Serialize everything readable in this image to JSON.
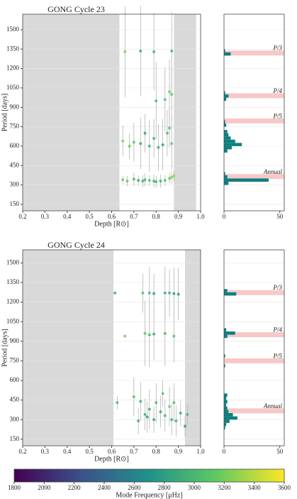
{
  "chart_data": [
    {
      "type": "scatter",
      "title": "GONG Cycle 23",
      "xlabel": "Depth [R⊙]",
      "ylabel": "Period [days]",
      "xlim": [
        0.2,
        1.0
      ],
      "ylim": [
        100,
        1620
      ],
      "xticks": [
        0.2,
        0.3,
        0.4,
        0.5,
        0.6,
        0.7,
        0.8,
        0.9,
        {
          "value": 1.0,
          "label": "1.0"
        }
      ],
      "yticks": [
        150,
        300,
        450,
        600,
        750,
        900,
        1050,
        1200,
        1350,
        1500
      ],
      "grid": true,
      "shaded": [
        [
          0.2,
          0.635
        ],
        [
          0.88,
          0.98
        ]
      ],
      "shade_color": "#d9d9d9",
      "errcolor": "#aaaaaa",
      "x": [
        0.65,
        0.67,
        0.7,
        0.72,
        0.74,
        0.75,
        0.77,
        0.79,
        0.8,
        0.82,
        0.84,
        0.86,
        0.87,
        0.88,
        0.65,
        0.68,
        0.7,
        0.73,
        0.75,
        0.77,
        0.79,
        0.81,
        0.83,
        0.85,
        0.86,
        0.87,
        0.8,
        0.84,
        0.86,
        0.87,
        0.66,
        0.73,
        0.79,
        0.87
      ],
      "y": [
        340,
        330,
        345,
        335,
        330,
        340,
        335,
        330,
        325,
        330,
        335,
        350,
        360,
        370,
        640,
        600,
        630,
        620,
        700,
        600,
        660,
        590,
        610,
        700,
        740,
        620,
        950,
        960,
        1020,
        1000,
        1330,
        1335,
        1330,
        1335
      ],
      "yerr": [
        30,
        40,
        50,
        40,
        45,
        50,
        40,
        50,
        45,
        50,
        40,
        40,
        50,
        40,
        120,
        100,
        150,
        200,
        150,
        200,
        150,
        180,
        200,
        180,
        150,
        200,
        300,
        250,
        250,
        200,
        350,
        350,
        300,
        300
      ],
      "freq": [
        3200,
        3150,
        3000,
        2900,
        2950,
        3000,
        3100,
        2950,
        3000,
        2900,
        3100,
        3200,
        3250,
        3300,
        3250,
        3200,
        3100,
        2900,
        2800,
        2950,
        3000,
        2900,
        2850,
        3000,
        3100,
        3150,
        3000,
        3100,
        3200,
        3150,
        3250,
        2900,
        2950,
        3000
      ]
    },
    {
      "type": "histogram",
      "xlim": [
        0,
        54
      ],
      "ylim": [
        100,
        1620
      ],
      "xticks": [
        0,
        50
      ],
      "yticks": [
        150,
        300,
        450,
        600,
        750,
        900,
        1050,
        1200,
        1350,
        1500
      ],
      "grid": true,
      "color": "#0f7f7f",
      "bins": [
        100,
        125,
        150,
        175,
        200,
        225,
        250,
        275,
        300,
        325,
        350,
        375,
        400,
        425,
        450,
        475,
        500,
        525,
        550,
        575,
        600,
        625,
        650,
        675,
        700,
        725,
        750,
        775,
        800,
        825,
        850,
        875,
        900,
        925,
        950,
        975,
        1000,
        1025,
        1050,
        1075,
        1100,
        1125,
        1150,
        1175,
        1200,
        1225,
        1250,
        1275,
        1300,
        1325,
        1350,
        1375,
        1400,
        1425,
        1450,
        1475,
        1500,
        1525,
        1550,
        1575,
        1600
      ],
      "counts": [
        0,
        0,
        0,
        0,
        0,
        0,
        0,
        0,
        4,
        40,
        3,
        1,
        0,
        0,
        0,
        0,
        0,
        0,
        3,
        7,
        16,
        10,
        6,
        4,
        3,
        0,
        2,
        1,
        0,
        0,
        0,
        0,
        0,
        0,
        2,
        4,
        1,
        0,
        0,
        0,
        0,
        0,
        0,
        0,
        0,
        0,
        0,
        0,
        6,
        1,
        0,
        0,
        0,
        0,
        0,
        0,
        0,
        0,
        0,
        0
      ],
      "band_color": "#f8c8c8",
      "bands": [
        {
          "label": "P/3",
          "value": 1320
        },
        {
          "label": "P/4",
          "value": 990
        },
        {
          "label": "P/5",
          "value": 795
        },
        {
          "label": "Annual",
          "value": 365
        }
      ]
    },
    {
      "type": "scatter",
      "title": "GONG Cycle 24",
      "xlabel": "Depth [R⊙]",
      "ylabel": "Period [days]",
      "xlim": [
        0.2,
        1.0
      ],
      "ylim": [
        100,
        1600
      ],
      "xticks": [
        0.2,
        0.3,
        0.4,
        0.5,
        0.6,
        0.7,
        0.8,
        0.9,
        {
          "value": 1.0,
          "label": "1.0"
        }
      ],
      "yticks": [
        150,
        300,
        450,
        600,
        750,
        900,
        1050,
        1200,
        1350,
        1500
      ],
      "grid": true,
      "shaded": [
        [
          0.2,
          0.608
        ],
        [
          0.93,
          1.0
        ]
      ],
      "shade_color": "#d9d9d9",
      "errcolor": "#aaaaaa",
      "x": [
        0.615,
        0.74,
        0.77,
        0.79,
        0.84,
        0.86,
        0.88,
        0.9,
        0.66,
        0.75,
        0.77,
        0.79,
        0.84,
        0.88,
        0.625,
        0.7,
        0.73,
        0.75,
        0.77,
        0.79,
        0.8,
        0.82,
        0.83,
        0.84,
        0.86,
        0.87,
        0.88,
        0.89,
        0.91,
        0.93,
        0.94,
        0.72,
        0.76
      ],
      "y": [
        1270,
        1270,
        1270,
        1265,
        1270,
        1270,
        1265,
        1260,
        940,
        960,
        950,
        955,
        960,
        940,
        430,
        475,
        440,
        340,
        380,
        300,
        430,
        360,
        500,
        330,
        400,
        300,
        430,
        290,
        350,
        250,
        340,
        290,
        320
      ],
      "yerr": [
        0,
        150,
        200,
        150,
        200,
        180,
        200,
        200,
        0,
        250,
        250,
        200,
        250,
        200,
        50,
        150,
        150,
        120,
        150,
        100,
        150,
        120,
        100,
        120,
        150,
        120,
        150,
        120,
        100,
        80,
        80,
        100,
        120
      ],
      "freq": [
        2900,
        3100,
        3000,
        2850,
        2900,
        2950,
        2800,
        2750,
        3200,
        3100,
        3000,
        2900,
        3000,
        3100,
        3050,
        3100,
        3000,
        2950,
        2900,
        2850,
        3000,
        2900,
        3100,
        3000,
        3200,
        2950,
        3050,
        3000,
        2900,
        2800,
        3000,
        3000,
        2800
      ]
    },
    {
      "type": "histogram",
      "xlim": [
        0,
        54
      ],
      "ylim": [
        100,
        1600
      ],
      "xticks": [
        0,
        50
      ],
      "yticks": [
        150,
        300,
        450,
        600,
        750,
        900,
        1050,
        1200,
        1350,
        1500
      ],
      "grid": true,
      "color": "#0f7f7f",
      "bins": [
        100,
        125,
        150,
        175,
        200,
        225,
        250,
        275,
        300,
        325,
        350,
        375,
        400,
        425,
        450,
        475,
        500,
        525,
        550,
        575,
        600,
        625,
        650,
        675,
        700,
        725,
        750,
        775,
        800,
        825,
        850,
        875,
        900,
        925,
        950,
        975,
        1000,
        1025,
        1050,
        1075,
        1100,
        1125,
        1150,
        1175,
        1200,
        1225,
        1250,
        1275,
        1300,
        1325,
        1350,
        1375,
        1400,
        1425,
        1450,
        1475,
        1500,
        1525,
        1550,
        1575,
        1600
      ],
      "counts": [
        0,
        0,
        0,
        0,
        0,
        1,
        2,
        5,
        12,
        8,
        4,
        3,
        2,
        3,
        2,
        3,
        0,
        0,
        0,
        0,
        0,
        0,
        0,
        0,
        1,
        0,
        0,
        1,
        0,
        0,
        0,
        0,
        0,
        3,
        10,
        2,
        0,
        0,
        0,
        0,
        0,
        0,
        0,
        0,
        0,
        0,
        11,
        3,
        0,
        0,
        0,
        0,
        0,
        0,
        0,
        0,
        0,
        0,
        0,
        0
      ],
      "band_color": "#f8c8c8",
      "bands": [
        {
          "label": "P/3",
          "value": 1273
        },
        {
          "label": "P/4",
          "value": 950
        },
        {
          "label": "P/5",
          "value": 750
        },
        {
          "label": "Annual",
          "value": 367
        }
      ]
    },
    {
      "type": "colorbar",
      "label": "Mode Frequency [μHz]",
      "clim": [
        1800,
        3600
      ],
      "ticks": [
        1800,
        2000,
        2200,
        2400,
        2600,
        2800,
        3000,
        3200,
        3400,
        3600
      ],
      "colormap": [
        "#440154",
        "#3b528b",
        "#21918c",
        "#5ec962",
        "#fde725"
      ]
    }
  ]
}
